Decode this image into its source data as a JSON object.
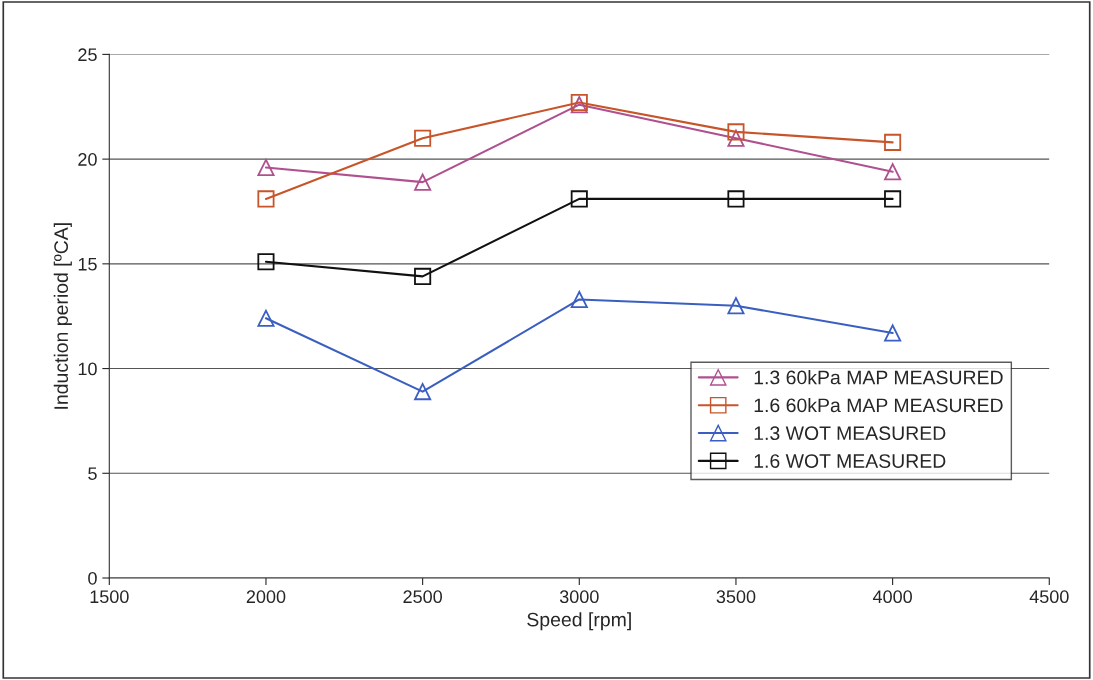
{
  "chart_data": {
    "type": "line",
    "xlabel": "Speed [rpm]",
    "ylabel": "Induction period [ºCA]",
    "x": [
      2000,
      2500,
      3000,
      3500,
      4000
    ],
    "series": [
      {
        "name": "1.3 60kPa MAP MEASURED",
        "color": "#b0508f",
        "marker": "triangle",
        "values": [
          19.6,
          18.9,
          22.6,
          21.0,
          19.4
        ]
      },
      {
        "name": "1.6 60kPa MAP MEASURED",
        "color": "#c8552a",
        "marker": "square",
        "values": [
          18.1,
          21.0,
          22.7,
          21.3,
          20.8
        ]
      },
      {
        "name": "1.3 WOT MEASURED",
        "color": "#3a5fc0",
        "marker": "triangle",
        "values": [
          12.4,
          8.9,
          13.3,
          13.0,
          11.7
        ]
      },
      {
        "name": "1.6 WOT MEASURED",
        "color": "#111111",
        "marker": "square",
        "values": [
          15.1,
          14.4,
          18.1,
          18.1,
          18.1
        ]
      }
    ],
    "xlim": [
      1500,
      4500
    ],
    "xticks": [
      1500,
      2000,
      2500,
      3000,
      3500,
      4000,
      4500
    ],
    "ylim": [
      0,
      25
    ],
    "yticks": [
      0,
      5,
      10,
      15,
      20,
      25
    ],
    "grid": "y",
    "legend": "right",
    "line_style": "solid"
  }
}
